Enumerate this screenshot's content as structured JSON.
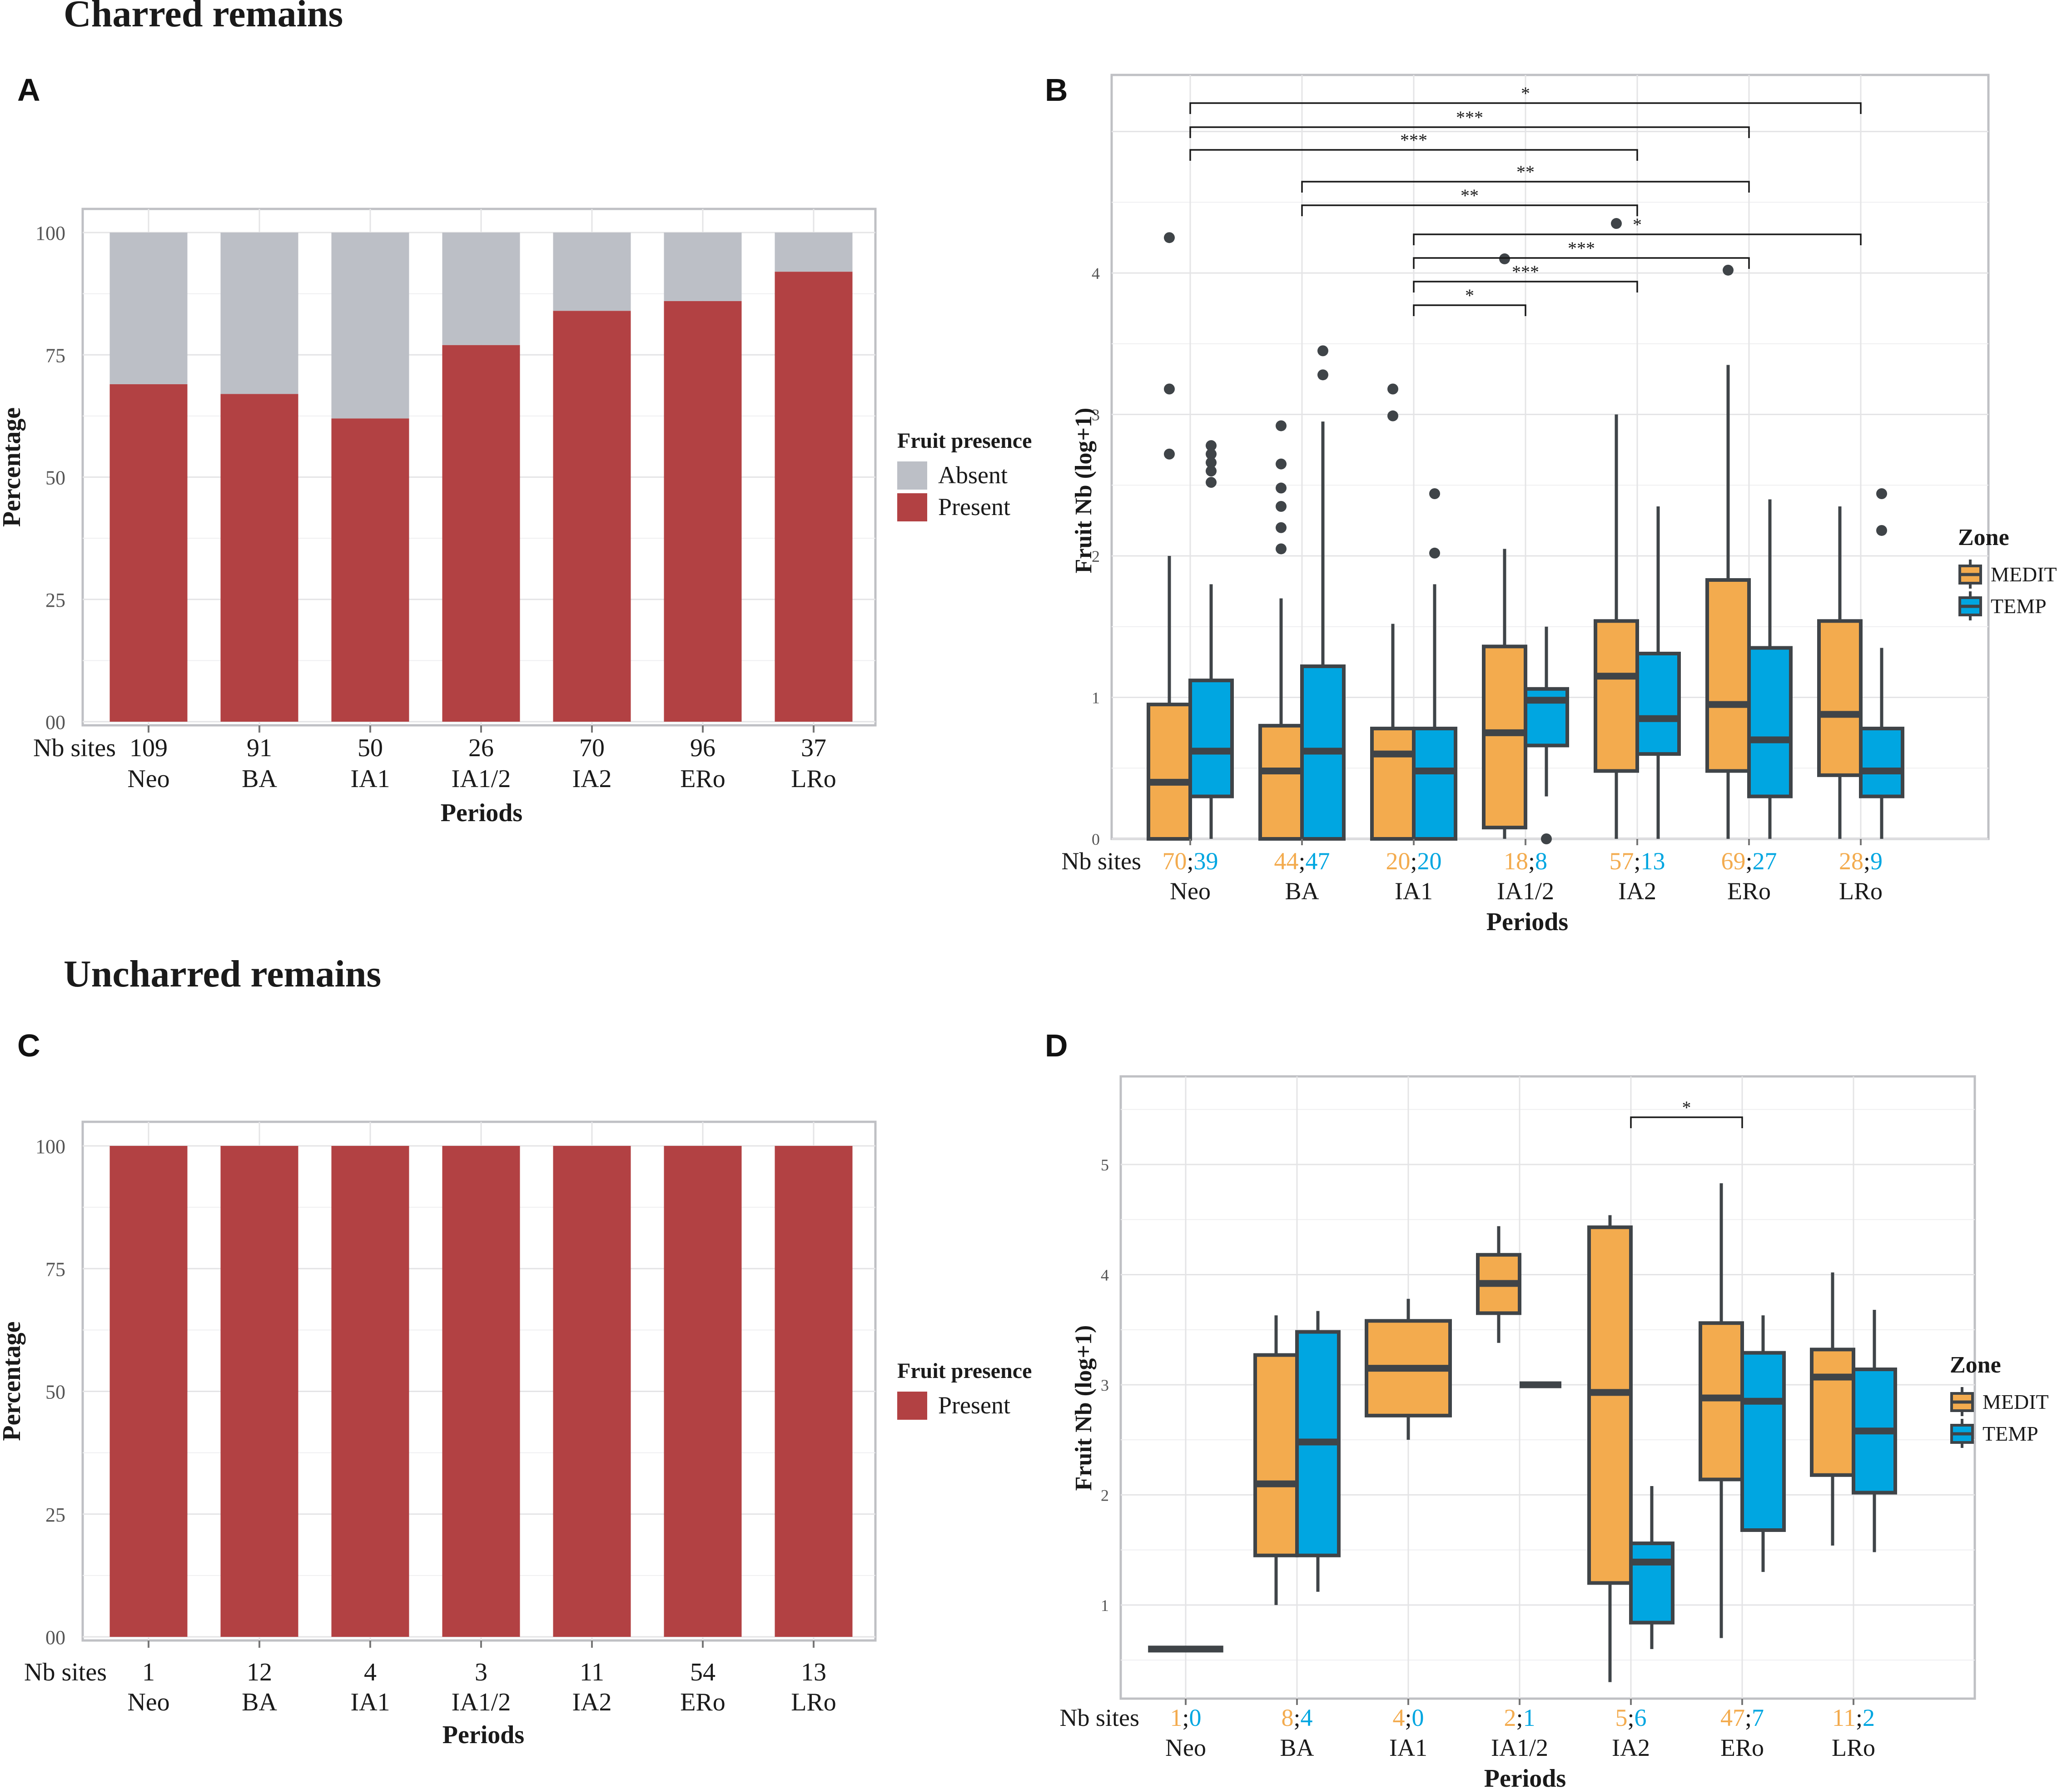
{
  "colors": {
    "absent": "#bcbfc6",
    "present": "#b24143",
    "medit": "#f3ab4e",
    "temp": "#00a6e1",
    "box_line": "#3f4448"
  },
  "headings": {
    "charred": "Charred remains",
    "uncharred": "Uncharred remains"
  },
  "chart_data": [
    {
      "panel": "A",
      "type": "bar",
      "stacked": true,
      "ylabel": "Percentage",
      "xlabel": "Periods",
      "ylim": [
        0,
        100
      ],
      "yticks": [
        "00",
        "25",
        "50",
        "75",
        "100"
      ],
      "categories": [
        "Neo",
        "BA",
        "IA1",
        "IA1/2",
        "IA2",
        "ERo",
        "LRo"
      ],
      "nb_label": "Nb sites",
      "nb_sites": [
        "109",
        "91",
        "50",
        "26",
        "70",
        "96",
        "37"
      ],
      "legend_title": "Fruit presence",
      "series": [
        {
          "name": "Absent",
          "values": [
            31,
            33,
            38,
            23,
            16,
            14,
            8
          ]
        },
        {
          "name": "Present",
          "values": [
            69,
            67,
            62,
            77,
            84,
            86,
            92
          ]
        }
      ]
    },
    {
      "panel": "B",
      "type": "box",
      "ylabel": "Fruit Nb (log+1)",
      "xlabel": "Periods",
      "ylim": [
        0,
        5.4
      ],
      "yticks": [
        "0",
        "1",
        "2",
        "3",
        "4"
      ],
      "categories": [
        "Neo",
        "BA",
        "IA1",
        "IA1/2",
        "IA2",
        "ERo",
        "LRo"
      ],
      "nb_label": "Nb sites",
      "nb_medit": [
        "70",
        "44",
        "20",
        "18",
        "57",
        "69",
        "28"
      ],
      "nb_temp": [
        "39",
        "47",
        "20",
        "8",
        "13",
        "27",
        "9"
      ],
      "legend_title": "Zone",
      "legend_items": [
        "MEDIT",
        "TEMP"
      ],
      "medit": [
        {
          "min": 0,
          "q1": 0,
          "median": 0.4,
          "q3": 0.95,
          "max": 2.0,
          "outliers": [
            2.72,
            3.18,
            4.25
          ]
        },
        {
          "min": 0,
          "q1": 0,
          "median": 0.48,
          "q3": 0.8,
          "max": 1.7,
          "outliers": [
            2.05,
            2.2,
            2.35,
            2.48,
            2.65,
            2.92
          ]
        },
        {
          "min": 0,
          "q1": 0,
          "median": 0.6,
          "q3": 0.78,
          "max": 1.52,
          "outliers": [
            2.99,
            3.18
          ]
        },
        {
          "min": 0,
          "q1": 0.08,
          "median": 0.75,
          "q3": 1.36,
          "max": 2.05,
          "outliers": [
            4.1
          ]
        },
        {
          "min": 0,
          "q1": 0.48,
          "median": 1.15,
          "q3": 1.54,
          "max": 3.0,
          "outliers": [
            4.35
          ]
        },
        {
          "min": 0,
          "q1": 0.48,
          "median": 0.95,
          "q3": 1.83,
          "max": 3.35,
          "outliers": [
            4.02
          ]
        },
        {
          "min": 0,
          "q1": 0.45,
          "median": 0.88,
          "q3": 1.54,
          "max": 2.35,
          "outliers": []
        }
      ],
      "temp": [
        {
          "min": 0,
          "q1": 0.3,
          "median": 0.62,
          "q3": 1.12,
          "max": 1.8,
          "outliers": [
            2.52,
            2.6,
            2.66,
            2.72,
            2.78
          ]
        },
        {
          "min": 0,
          "q1": 0,
          "median": 0.62,
          "q3": 1.22,
          "max": 2.95,
          "outliers": [
            3.28,
            3.45
          ]
        },
        {
          "min": 0,
          "q1": 0,
          "median": 0.48,
          "q3": 0.78,
          "max": 1.8,
          "outliers": [
            2.02,
            2.44
          ]
        },
        {
          "min": 0.3,
          "q1": 0.66,
          "median": 0.98,
          "q3": 1.06,
          "max": 1.5,
          "outliers": [
            0
          ]
        },
        {
          "min": 0,
          "q1": 0.6,
          "median": 0.85,
          "q3": 1.31,
          "max": 2.35,
          "outliers": []
        },
        {
          "min": 0,
          "q1": 0.3,
          "median": 0.7,
          "q3": 1.35,
          "max": 2.4,
          "outliers": []
        },
        {
          "min": 0,
          "q1": 0.3,
          "median": 0.48,
          "q3": 0.78,
          "max": 1.35,
          "outliers": [
            2.18,
            2.44
          ]
        }
      ],
      "significance": [
        {
          "from": 0,
          "to": 6,
          "label": "*"
        },
        {
          "from": 0,
          "to": 5,
          "label": "***"
        },
        {
          "from": 0,
          "to": 4,
          "label": "***"
        },
        {
          "from": 1,
          "to": 5,
          "label": "**"
        },
        {
          "from": 1,
          "to": 4,
          "label": "**"
        },
        {
          "from": 2,
          "to": 6,
          "label": "*"
        },
        {
          "from": 2,
          "to": 5,
          "label": "***"
        },
        {
          "from": 2,
          "to": 4,
          "label": "***"
        },
        {
          "from": 2,
          "to": 3,
          "label": "*"
        }
      ]
    },
    {
      "panel": "C",
      "type": "bar",
      "stacked": true,
      "ylabel": "Percentage",
      "xlabel": "Periods",
      "ylim": [
        0,
        100
      ],
      "yticks": [
        "00",
        "25",
        "50",
        "75",
        "100"
      ],
      "categories": [
        "Neo",
        "BA",
        "IA1",
        "IA1/2",
        "IA2",
        "ERo",
        "LRo"
      ],
      "nb_label": "Nb sites",
      "nb_sites": [
        "1",
        "12",
        "4",
        "3",
        "11",
        "54",
        "13"
      ],
      "legend_title": "Fruit presence",
      "series": [
        {
          "name": "Present",
          "values": [
            100,
            100,
            100,
            100,
            100,
            100,
            100
          ]
        }
      ]
    },
    {
      "panel": "D",
      "type": "box",
      "ylabel": "Fruit Nb (log+1)",
      "xlabel": "Periods",
      "ylim": [
        0.15,
        5.8
      ],
      "yticks": [
        "1",
        "2",
        "3",
        "4",
        "5"
      ],
      "categories": [
        "Neo",
        "BA",
        "IA1",
        "IA1/2",
        "IA2",
        "ERo",
        "LRo"
      ],
      "nb_label": "Nb sites",
      "nb_medit": [
        "1",
        "8",
        "4",
        "2",
        "5",
        "47",
        "11"
      ],
      "nb_temp": [
        "0",
        "4",
        "0",
        "1",
        "6",
        "7",
        "2"
      ],
      "legend_title": "Zone",
      "legend_items": [
        "MEDIT",
        "TEMP"
      ],
      "medit": [
        {
          "min": 0.6,
          "q1": 0.6,
          "median": 0.6,
          "q3": 0.6,
          "max": 0.6,
          "outliers": [],
          "dodge": false
        },
        {
          "min": 1.0,
          "q1": 1.45,
          "median": 2.1,
          "q3": 3.27,
          "max": 3.63,
          "outliers": []
        },
        {
          "min": 2.5,
          "q1": 2.72,
          "median": 3.15,
          "q3": 3.58,
          "max": 3.78,
          "outliers": [],
          "dodge": false
        },
        {
          "min": 3.38,
          "q1": 3.65,
          "median": 3.92,
          "q3": 4.18,
          "max": 4.44,
          "outliers": []
        },
        {
          "min": 0.3,
          "q1": 1.2,
          "median": 2.93,
          "q3": 4.43,
          "max": 4.54,
          "outliers": []
        },
        {
          "min": 0.7,
          "q1": 2.14,
          "median": 2.88,
          "q3": 3.56,
          "max": 4.83,
          "outliers": []
        },
        {
          "min": 1.54,
          "q1": 2.18,
          "median": 3.07,
          "q3": 3.32,
          "max": 4.02,
          "outliers": []
        }
      ],
      "temp": [
        null,
        {
          "min": 1.12,
          "q1": 1.45,
          "median": 2.48,
          "q3": 3.48,
          "max": 3.67,
          "outliers": []
        },
        null,
        {
          "min": 3.0,
          "q1": 3.0,
          "median": 3.0,
          "q3": 3.0,
          "max": 3.0,
          "outliers": []
        },
        {
          "min": 0.6,
          "q1": 0.84,
          "median": 1.39,
          "q3": 1.56,
          "max": 2.08,
          "outliers": []
        },
        {
          "min": 1.3,
          "q1": 1.68,
          "median": 2.85,
          "q3": 3.29,
          "max": 3.63,
          "outliers": []
        },
        {
          "min": 1.48,
          "q1": 2.02,
          "median": 2.58,
          "q3": 3.14,
          "max": 3.68,
          "outliers": []
        }
      ],
      "significance": [
        {
          "from": 4,
          "to": 5,
          "label": "*"
        }
      ]
    }
  ]
}
